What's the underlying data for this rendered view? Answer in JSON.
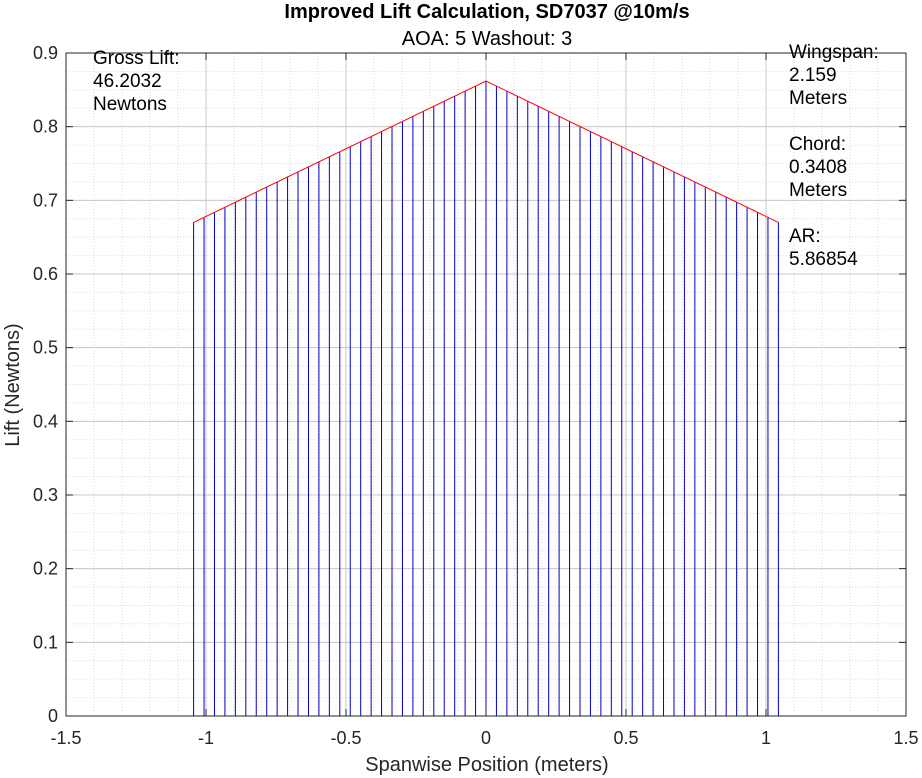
{
  "chart_data": {
    "type": "bar",
    "title": "Improved Lift Calculation, SD7037 @10m/s",
    "subtitle": "AOA: 5 Washout: 3",
    "xlabel": "Spanwise Position (meters)",
    "ylabel": "Lift (Newtons)",
    "xlim": [
      -1.5,
      1.5
    ],
    "ylim": [
      0,
      0.9
    ],
    "xticks": [
      -1.5,
      -1,
      -0.5,
      0,
      0.5,
      1,
      1.5
    ],
    "xtick_labels": [
      "-1.5",
      "-1",
      "-0.5",
      "0",
      "0.5",
      "1",
      "1.5"
    ],
    "yticks": [
      0,
      0.1,
      0.2,
      0.3,
      0.4,
      0.5,
      0.6,
      0.7,
      0.8,
      0.9
    ],
    "ytick_labels": [
      "0",
      "0.1",
      "0.2",
      "0.3",
      "0.4",
      "0.5",
      "0.6",
      "0.7",
      "0.8",
      "0.9"
    ],
    "grid": true,
    "minor_grid": true,
    "stem_color": "#0000cc",
    "envelope_color": "#ff0000",
    "stations": {
      "x_start": -1.0443,
      "x_end": 1.0443,
      "count": 57,
      "lift_at_root": 0.862,
      "lift_at_tip": 0.67
    },
    "envelope": {
      "x": [
        -1.0443,
        0,
        1.0443
      ],
      "y": [
        0.67,
        0.862,
        0.67
      ]
    },
    "annotations": {
      "gross_lift": [
        "Gross Lift:",
        "46.2032",
        "Newtons"
      ],
      "wingspan": [
        "Wingspan:",
        "2.159",
        "Meters"
      ],
      "chord": [
        "Chord:",
        "0.3408",
        "Meters"
      ],
      "aspect_ratio": [
        "AR:",
        "5.86854"
      ]
    }
  }
}
